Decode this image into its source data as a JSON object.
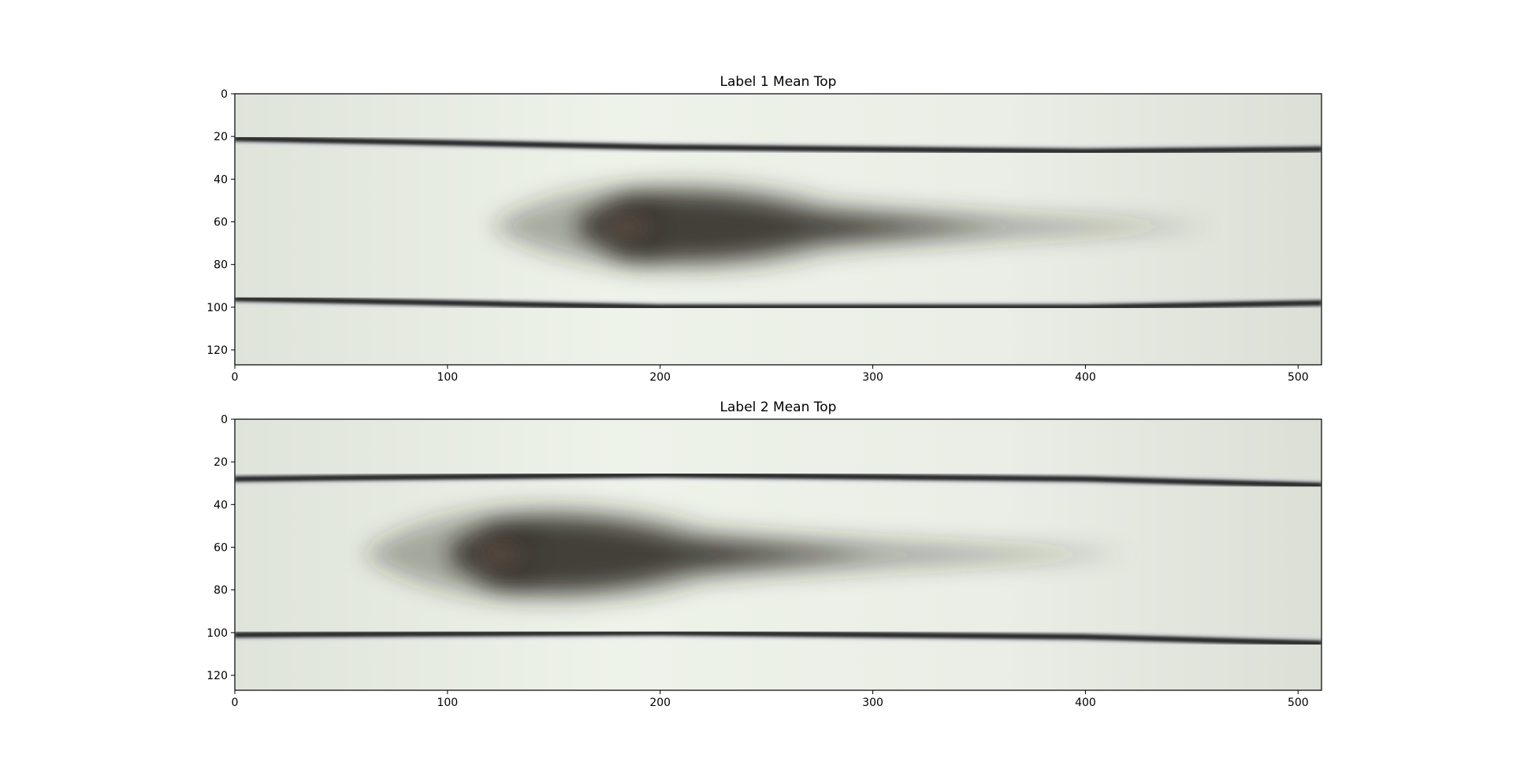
{
  "chart_data": [
    {
      "type": "heatmap",
      "title": "Label 1 Mean Top",
      "xlim": [
        0,
        511
      ],
      "ylim": [
        127,
        0
      ],
      "xticks": [
        "0",
        "100",
        "200",
        "300",
        "400",
        "500"
      ],
      "yticks": [
        "0",
        "20",
        "40",
        "60",
        "80",
        "100",
        "120"
      ],
      "background_color": "#e6ebe2",
      "lines": [
        {
          "points": [
            [
              0,
              21
            ],
            [
              200,
              25
            ],
            [
              400,
              27
            ],
            [
              511,
              26
            ]
          ],
          "color": "#2b2b2b"
        },
        {
          "points": [
            [
              0,
              96
            ],
            [
              200,
              100
            ],
            [
              400,
              100
            ],
            [
              511,
              98
            ]
          ],
          "color": "#2b2b2b"
        }
      ],
      "plume": {
        "tip_x": 160,
        "peak_x": 240,
        "tail_x": 460,
        "center_y": 62,
        "spread_y": 22,
        "color": "#2a2420"
      }
    },
    {
      "type": "heatmap",
      "title": "Label 2 Mean Top",
      "xlim": [
        0,
        511
      ],
      "ylim": [
        127,
        0
      ],
      "xticks": [
        "0",
        "100",
        "200",
        "300",
        "400",
        "500"
      ],
      "yticks": [
        "0",
        "20",
        "40",
        "60",
        "80",
        "100",
        "120"
      ],
      "background_color": "#e6ebe2",
      "lines": [
        {
          "points": [
            [
              0,
              28
            ],
            [
              200,
              26
            ],
            [
              400,
              28
            ],
            [
              511,
              31
            ]
          ],
          "color": "#2b2b2b"
        },
        {
          "points": [
            [
              0,
              101
            ],
            [
              200,
              100
            ],
            [
              400,
              102
            ],
            [
              511,
              105
            ]
          ],
          "color": "#2b2b2b"
        }
      ],
      "plume": {
        "tip_x": 100,
        "peak_x": 180,
        "tail_x": 420,
        "center_y": 63,
        "spread_y": 24,
        "color": "#2a2420"
      }
    }
  ]
}
